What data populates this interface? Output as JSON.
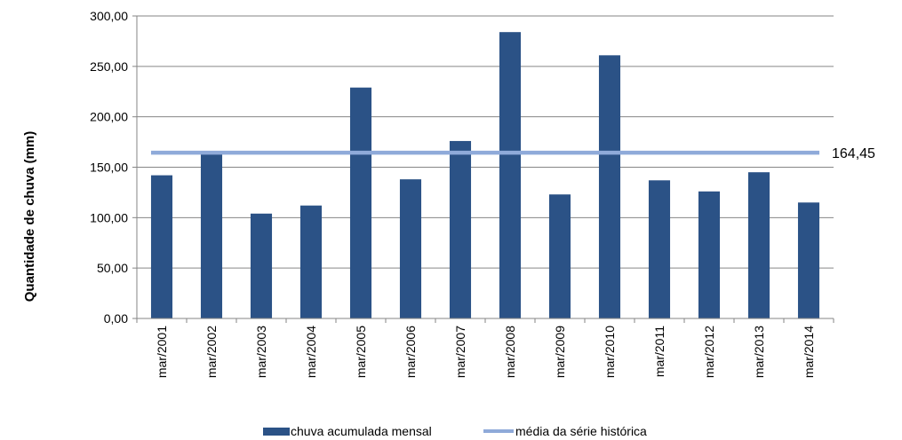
{
  "chart_data": {
    "type": "bar",
    "title": "",
    "xlabel": "",
    "ylabel": "Quantidade de chuva (mm)",
    "ylim": [
      0,
      300
    ],
    "yticks": [
      "0,00",
      "50,00",
      "100,00",
      "150,00",
      "200,00",
      "250,00",
      "300,00"
    ],
    "categories": [
      "mar/2001",
      "mar/2002",
      "mar/2003",
      "mar/2004",
      "mar/2005",
      "mar/2006",
      "mar/2007",
      "mar/2008",
      "mar/2009",
      "mar/2010",
      "mar/2011",
      "mar/2012",
      "mar/2013",
      "mar/2014"
    ],
    "series": [
      {
        "name": "chuva acumulada mensal",
        "type": "bar",
        "color": "#2B5286",
        "values": [
          142,
          166,
          104,
          112,
          229,
          138,
          176,
          284,
          123,
          261,
          137,
          126,
          145,
          115
        ]
      },
      {
        "name": "média da série histórica",
        "type": "line",
        "color": "#8FAAD9",
        "value": 164.45,
        "label": "164,45"
      }
    ],
    "grid": true,
    "legend_position": "bottom"
  }
}
